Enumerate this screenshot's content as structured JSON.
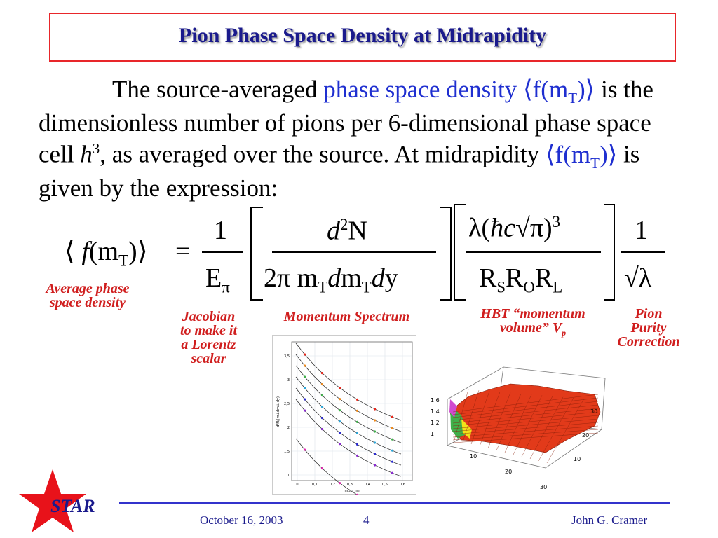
{
  "title": "Pion Phase Space Density at Midrapidity",
  "paragraph": [
    "The source-averaged ",
    "phase space density",
    "⟨f(m",
    "T",
    ")⟩",
    " is the dimensionless number of pions per 6-dimensional phase space cell ",
    "h",
    "3",
    ", as averaged over the source.  At midrapidity ",
    "⟨f(m",
    "T",
    ")⟩",
    "  is given by the expression:"
  ],
  "equation": {
    "lhs": [
      "⟨",
      "f",
      "(m",
      "T",
      ")⟩"
    ],
    "equals": "=",
    "frac1": {
      "num": "1",
      "den": [
        "E",
        "π"
      ]
    },
    "frac2": {
      "num": [
        "d",
        "2",
        "N"
      ],
      "den": [
        "2π m",
        "T",
        "d",
        "m",
        "T",
        "d",
        "y"
      ]
    },
    "frac3": {
      "num": [
        "λ(",
        "ħc",
        "√π",
        ")",
        "3"
      ],
      "den": [
        "R",
        "S",
        "R",
        "O",
        "R",
        "L"
      ]
    },
    "frac4": {
      "num": "1",
      "den": "√λ"
    }
  },
  "annotations": [
    {
      "lines": [
        "Average phase",
        "space density"
      ]
    },
    {
      "lines": [
        "Jacobian",
        "to make it",
        "a Lorentz",
        "scalar"
      ]
    },
    {
      "lines": [
        "Momentum Spectrum"
      ]
    },
    {
      "lines": [
        "HBT “momentum",
        "volume” V"
      ],
      "sub": "p"
    },
    {
      "lines": [
        "Pion",
        "Purity",
        "Correction"
      ]
    }
  ],
  "figures": {
    "spectrum": {
      "yticks": [
        "3,5",
        "3",
        "2,5",
        "2",
        "1,5",
        "1"
      ],
      "xticks": [
        "0",
        "0,1",
        "0,2",
        "0,3",
        "0,4",
        "0,5",
        "0,6"
      ],
      "ylabel": "d²N/(m⊥dm⊥ dy)",
      "xlabel": "m⊥ - m₀"
    },
    "surface": {
      "zticks": [
        "1.6",
        "1.4",
        "1.2",
        "1"
      ],
      "xticks": [
        "10",
        "20",
        "30"
      ],
      "yticks": [
        "10",
        "20",
        "30"
      ]
    }
  },
  "footer": {
    "logo": "STAR",
    "date": "October 16, 2003",
    "page": "4",
    "author": "John G. Cramer"
  }
}
